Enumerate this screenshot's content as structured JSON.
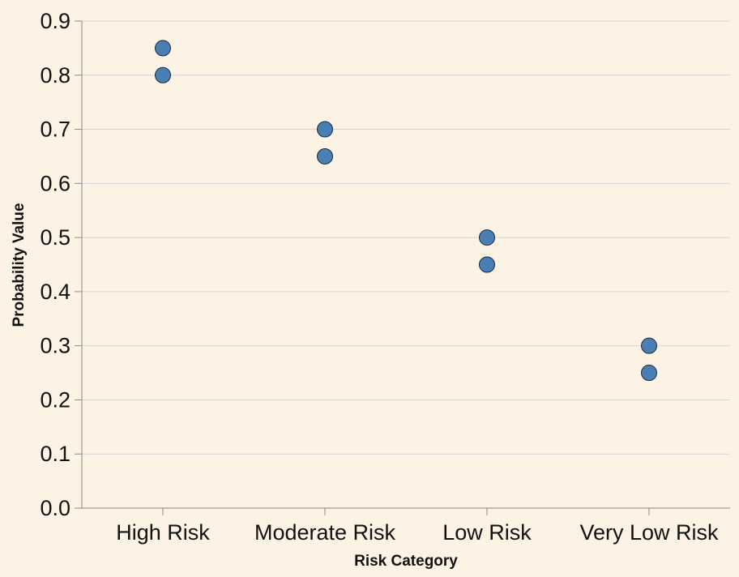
{
  "chart_data": {
    "type": "scatter",
    "xlabel": "Risk Category",
    "ylabel": "Probability Value",
    "categories": [
      "High Risk",
      "Moderate Risk",
      "Low Risk",
      "Very Low Risk"
    ],
    "points": [
      {
        "x": "High Risk",
        "y": 0.85
      },
      {
        "x": "High Risk",
        "y": 0.8
      },
      {
        "x": "Moderate Risk",
        "y": 0.7
      },
      {
        "x": "Moderate Risk",
        "y": 0.65
      },
      {
        "x": "Low Risk",
        "y": 0.5
      },
      {
        "x": "Low Risk",
        "y": 0.45
      },
      {
        "x": "Very Low Risk",
        "y": 0.3
      },
      {
        "x": "Very Low Risk",
        "y": 0.25
      }
    ],
    "ylim": [
      0,
      0.9
    ],
    "yticks": [
      "0.0",
      "0.1",
      "0.2",
      "0.3",
      "0.4",
      "0.5",
      "0.6",
      "0.7",
      "0.8",
      "0.9"
    ],
    "grid": true,
    "colors": {
      "background": "#fdf3e4",
      "point": "#4a7fb5"
    }
  }
}
